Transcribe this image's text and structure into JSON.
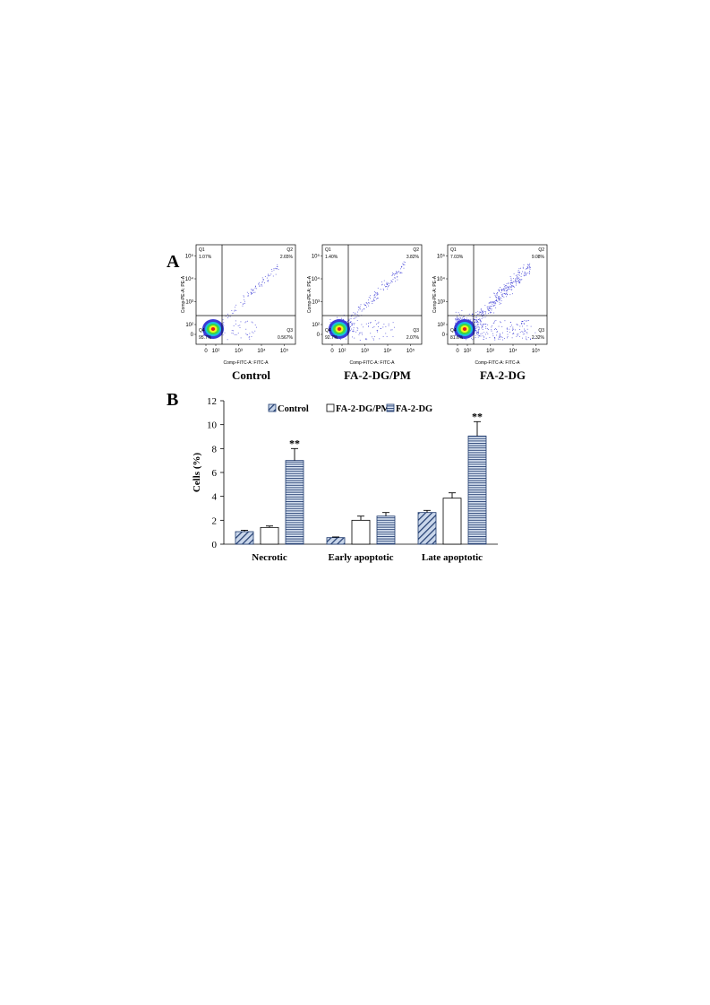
{
  "panel_a": {
    "label": "A",
    "xlabel": "Comp-FITC-A: FITC-A",
    "ylabel": "Comp-PE-A: PE-A",
    "xticks": [
      {
        "value": 0,
        "label": "0"
      },
      {
        "value": 100,
        "label": "10²"
      },
      {
        "value": 1000,
        "label": "10³"
      },
      {
        "value": 10000,
        "label": "10⁴"
      },
      {
        "value": 100000,
        "label": "10⁵"
      }
    ],
    "yticks": [
      {
        "value": 0,
        "label": "0"
      },
      {
        "value": 100,
        "label": "10²"
      },
      {
        "value": 1000,
        "label": "10³"
      },
      {
        "value": 10000,
        "label": "10⁴"
      },
      {
        "value": 100000,
        "label": "10⁵"
      }
    ],
    "plots": [
      {
        "title": "Control",
        "quadrants": [
          {
            "name": "Q1",
            "percent": "1.07%"
          },
          {
            "name": "Q2",
            "percent": "2.65%"
          },
          {
            "name": "Q3",
            "percent": "0.567%"
          },
          {
            "name": "Q4",
            "percent": "95.7%"
          }
        ]
      },
      {
        "title": "FA-2-DG/PM",
        "quadrants": [
          {
            "name": "Q1",
            "percent": "1.40%"
          },
          {
            "name": "Q2",
            "percent": "3.82%"
          },
          {
            "name": "Q3",
            "percent": "2.07%"
          },
          {
            "name": "Q4",
            "percent": "92.7%"
          }
        ]
      },
      {
        "title": "FA-2-DG",
        "quadrants": [
          {
            "name": "Q1",
            "percent": "7.03%"
          },
          {
            "name": "Q2",
            "percent": "9.08%"
          },
          {
            "name": "Q3",
            "percent": "2.32%"
          },
          {
            "name": "Q4",
            "percent": "81.6%"
          }
        ]
      }
    ]
  },
  "chart_data": {
    "type": "bar",
    "panel_label": "B",
    "ylabel": "Cells (%)",
    "categories": [
      "Necrotic",
      "Early apoptotic",
      "Late apoptotic"
    ],
    "ylim": [
      0,
      12
    ],
    "yticks": [
      0,
      2,
      4,
      6,
      8,
      10,
      12
    ],
    "legend": "top",
    "series": [
      {
        "name": "Control",
        "color": "#1f3a6e",
        "pattern": "diagonal",
        "values": [
          1.05,
          0.55,
          2.65
        ],
        "errors": [
          0.12,
          0.05,
          0.18
        ]
      },
      {
        "name": "FA-2-DG/PM",
        "color": "#000000",
        "pattern": "none",
        "values": [
          1.4,
          2.0,
          3.85
        ],
        "errors": [
          0.12,
          0.35,
          0.45
        ]
      },
      {
        "name": "FA-2-DG",
        "color": "#1f3a6e",
        "pattern": "horizontal",
        "values": [
          7.0,
          2.35,
          9.05
        ],
        "errors": [
          1.0,
          0.3,
          1.2
        ],
        "significance": [
          "**",
          null,
          "**"
        ]
      }
    ]
  }
}
